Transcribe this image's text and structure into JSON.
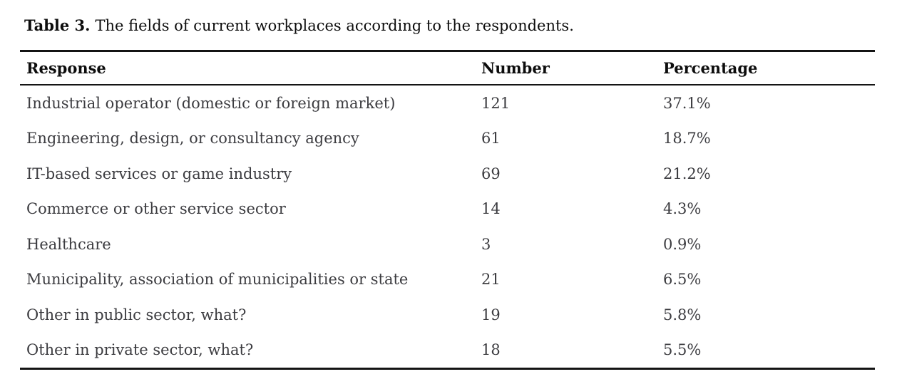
{
  "caption": {
    "label": "Table 3.",
    "text": "The fields of current workplaces according to the respondents."
  },
  "table": {
    "columns": [
      "Response",
      "Number",
      "Percentage"
    ],
    "rows": [
      {
        "response": "Industrial operator (domestic or foreign market)",
        "number": "121",
        "percentage": "37.1%"
      },
      {
        "response": "Engineering, design, or consultancy agency",
        "number": "61",
        "percentage": "18.7%"
      },
      {
        "response": "IT-based services or game industry",
        "number": "69",
        "percentage": "21.2%"
      },
      {
        "response": "Commerce or other service sector",
        "number": "14",
        "percentage": "4.3%"
      },
      {
        "response": "Healthcare",
        "number": "3",
        "percentage": "0.9%"
      },
      {
        "response": "Municipality, association of municipalities or state",
        "number": "21",
        "percentage": "6.5%"
      },
      {
        "response": "Other in public sector, what?",
        "number": "19",
        "percentage": "5.8%"
      },
      {
        "response": "Other in private sector, what?",
        "number": "18",
        "percentage": "5.5%"
      }
    ]
  },
  "colors": {
    "rule": "#141414",
    "heading_text": "#0d0d0d",
    "body_text": "#3c3c40",
    "background": "#ffffff"
  }
}
